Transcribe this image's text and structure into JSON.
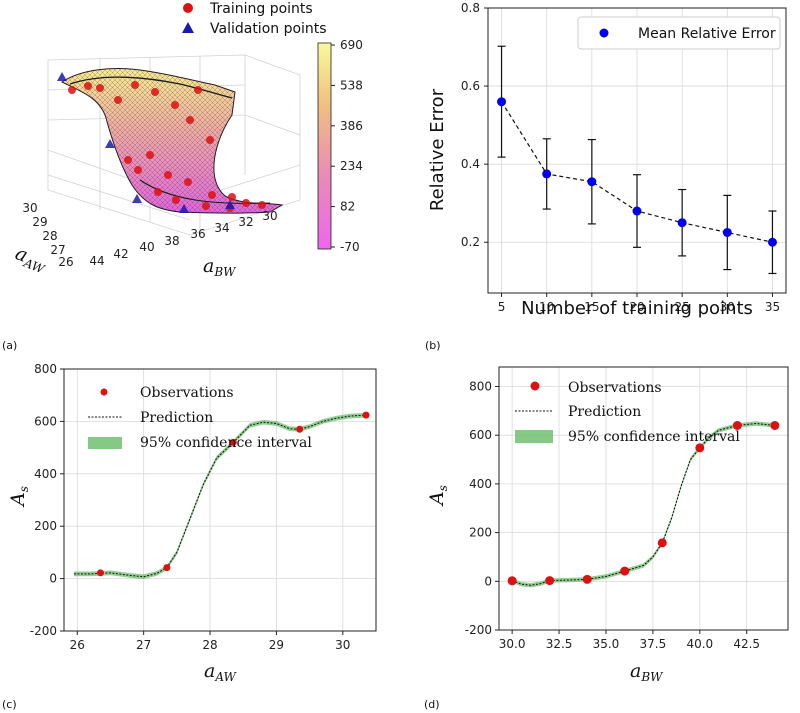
{
  "colors": {
    "observation": "#dd1111",
    "validation": "#1a1aaa",
    "error_point": "#0000ee",
    "band": "#6fbf6f",
    "grid": "#d9d9d9"
  },
  "chart_data": [
    {
      "panel": "(a)",
      "type": "surface3d",
      "xlabel": "a_AW",
      "ylabel": "a_BW",
      "xlabel_main": "a",
      "xlabel_sub": "AW",
      "ylabel_main": "a",
      "ylabel_sub": "BW",
      "x_ticks": [
        "30",
        "29",
        "28",
        "27",
        "26"
      ],
      "y_ticks": [
        "44",
        "42",
        "40",
        "38",
        "36",
        "34",
        "32",
        "30"
      ],
      "legend": [
        {
          "label": "Training points",
          "marker": "circle"
        },
        {
          "label": "Validation points",
          "marker": "triangle"
        }
      ],
      "colorbar": {
        "ticks": [
          "690",
          "538",
          "386",
          "234",
          "82",
          "-70"
        ],
        "min": -70,
        "max": 690
      }
    },
    {
      "panel": "(b)",
      "type": "errorbar-line",
      "xlabel": "Number of training points",
      "ylabel": "Relative Error",
      "x": [
        5,
        10,
        15,
        20,
        25,
        30,
        35
      ],
      "y": [
        0.56,
        0.375,
        0.355,
        0.28,
        0.25,
        0.225,
        0.2
      ],
      "err": [
        0.142,
        0.09,
        0.108,
        0.093,
        0.085,
        0.095,
        0.08
      ],
      "xlim": [
        3.5,
        36.5
      ],
      "ylim": [
        0.07,
        0.8
      ],
      "x_ticks": [
        "5",
        "10",
        "15",
        "20",
        "25",
        "30",
        "35"
      ],
      "y_ticks": [
        "0.2",
        "0.4",
        "0.6",
        "0.8"
      ],
      "legend": [
        {
          "label": "Mean Relative Error"
        }
      ]
    },
    {
      "panel": "(c)",
      "type": "line",
      "xlabel": "a_AW",
      "xlabel_main": "a",
      "xlabel_sub": "AW",
      "ylabel": "A_s",
      "ylabel_main": "A",
      "ylabel_sub": "s",
      "xlim": [
        25.8,
        30.5
      ],
      "ylim": [
        -200,
        800
      ],
      "x_ticks": [
        "26",
        "27",
        "28",
        "29",
        "30"
      ],
      "y_ticks": [
        "-200",
        "0",
        "200",
        "400",
        "600",
        "800"
      ],
      "observations": {
        "x": [
          26.35,
          27.35,
          28.35,
          29.35,
          30.35
        ],
        "y": [
          22,
          42,
          520,
          570,
          624
        ]
      },
      "prediction": {
        "x": [
          25.95,
          26.2,
          26.5,
          26.8,
          27.0,
          27.2,
          27.35,
          27.5,
          27.7,
          27.9,
          28.1,
          28.35,
          28.6,
          28.8,
          29.0,
          29.2,
          29.35,
          29.5,
          29.7,
          29.9,
          30.1,
          30.35
        ],
        "y": [
          18,
          18,
          22,
          12,
          7,
          20,
          42,
          100,
          230,
          360,
          460,
          520,
          585,
          597,
          592,
          572,
          570,
          580,
          600,
          612,
          620,
          624
        ]
      },
      "legend": [
        {
          "label": "Observations"
        },
        {
          "label": "Prediction"
        },
        {
          "label": "95% confidence interval"
        }
      ]
    },
    {
      "panel": "(d)",
      "type": "line",
      "xlabel": "a_BW",
      "xlabel_main": "a",
      "xlabel_sub": "BW",
      "ylabel": "A_s",
      "ylabel_main": "A",
      "ylabel_sub": "s",
      "xlim": [
        29.3,
        44.7
      ],
      "ylim": [
        -200,
        880
      ],
      "x_ticks": [
        "30.0",
        "32.5",
        "35.0",
        "37.5",
        "40.0",
        "42.5"
      ],
      "x_tick_values": [
        30,
        32.5,
        35,
        37.5,
        40,
        42.5
      ],
      "y_ticks": [
        "-200",
        "0",
        "200",
        "400",
        "600",
        "800"
      ],
      "observations": {
        "x": [
          30,
          32,
          34,
          36,
          38,
          40,
          42,
          44
        ],
        "y": [
          2,
          3,
          8,
          42,
          158,
          548,
          640,
          640
        ]
      },
      "prediction": {
        "x": [
          30,
          30.5,
          31,
          31.5,
          32,
          33,
          34,
          35,
          36,
          37,
          37.5,
          38,
          38.5,
          39,
          39.5,
          40,
          40.5,
          41,
          42,
          43,
          44
        ],
        "y": [
          2,
          -12,
          -16,
          -10,
          3,
          5,
          8,
          20,
          42,
          65,
          100,
          158,
          260,
          390,
          500,
          548,
          590,
          620,
          640,
          648,
          640
        ]
      },
      "legend": [
        {
          "label": "Observations"
        },
        {
          "label": "Prediction"
        },
        {
          "label": "95% confidence interval"
        }
      ]
    }
  ]
}
